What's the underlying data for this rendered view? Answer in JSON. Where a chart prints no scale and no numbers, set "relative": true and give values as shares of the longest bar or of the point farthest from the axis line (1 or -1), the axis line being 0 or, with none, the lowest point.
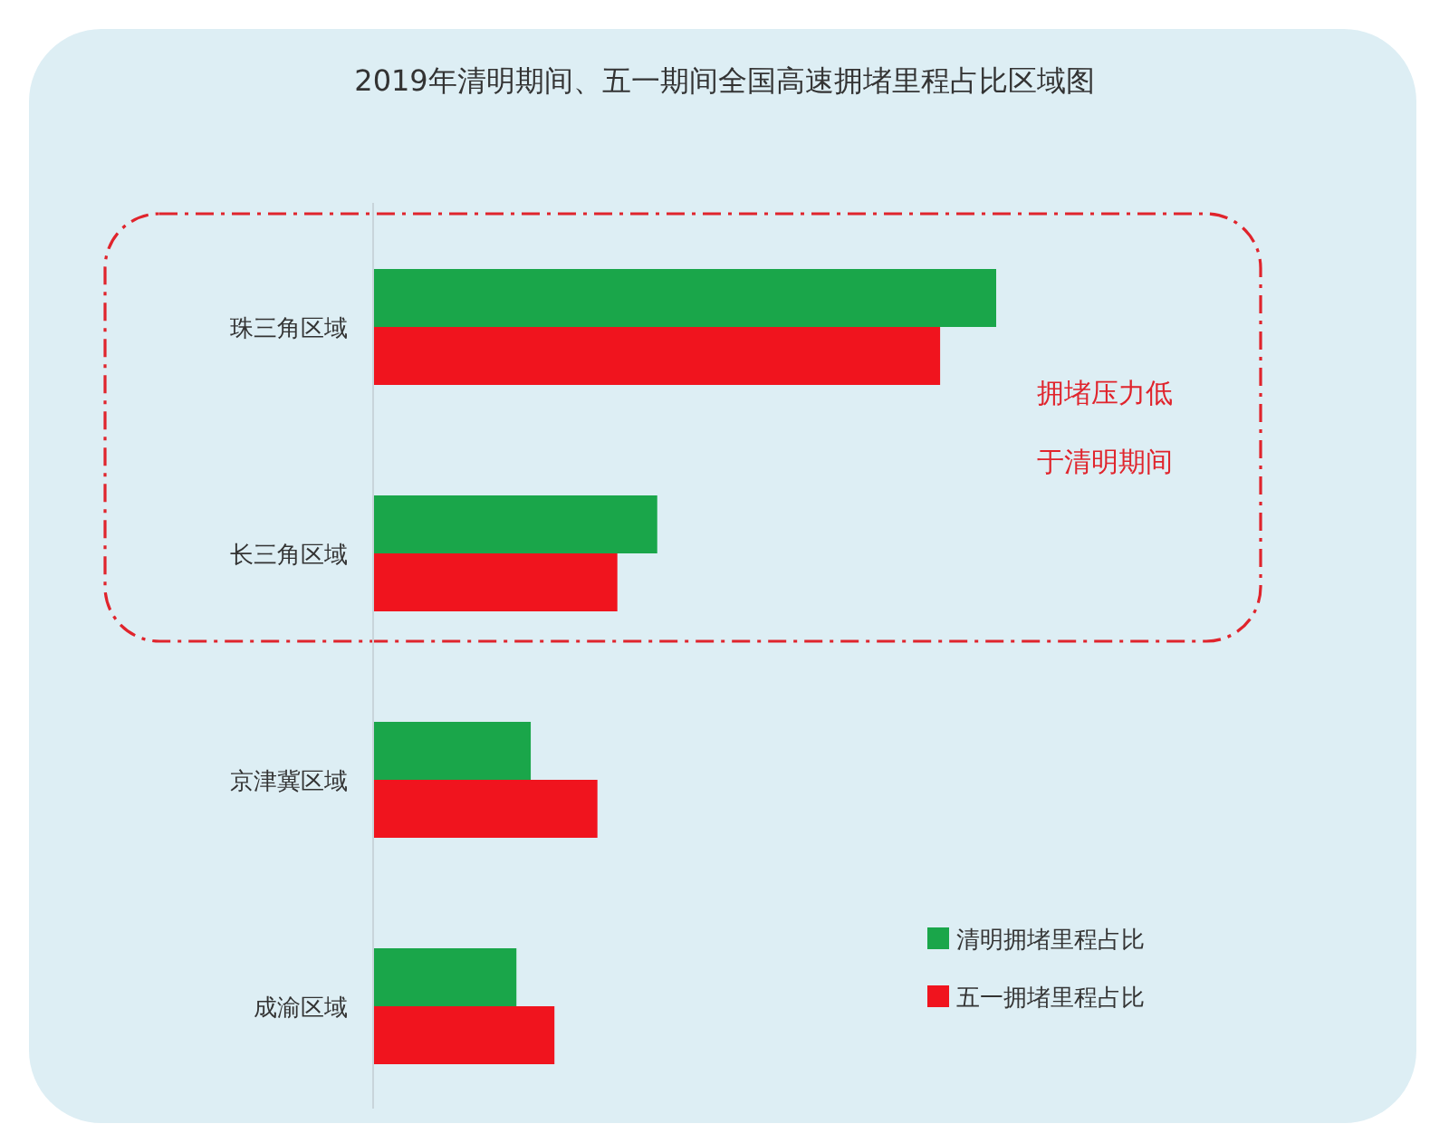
{
  "chart_data": {
    "type": "bar",
    "orientation": "horizontal",
    "relative": true,
    "title": "2019年清明期间、五一期间全国高速拥堵里程占比区域图",
    "categories": [
      "珠三角区域",
      "长三角区域",
      "京津冀区域",
      "成渝区域"
    ],
    "series": [
      {
        "name": "清明拥堵里程占比",
        "color": "#1aa64a",
        "values": [
          1,
          0.456,
          0.253,
          0.23
        ]
      },
      {
        "name": "五一拥堵里程占比",
        "color": "#f0141e",
        "values": [
          0.91,
          0.392,
          0.36,
          0.291
        ]
      }
    ],
    "legend": "bottom right",
    "annotations": [
      "拥堵压力低于清明期间"
    ]
  }
}
